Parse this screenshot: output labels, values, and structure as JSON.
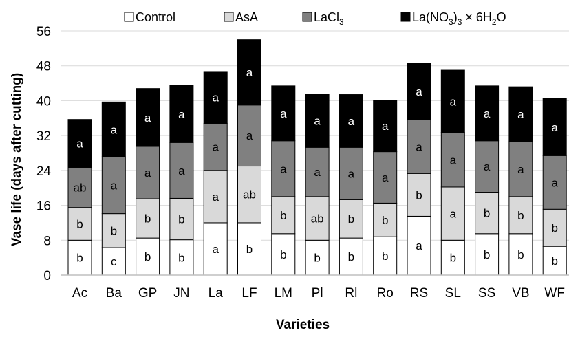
{
  "chart_data": {
    "type": "bar",
    "stacked": true,
    "xlabel": "Varieties",
    "ylabel": "Vase life (days after cutting)",
    "ylim": [
      0,
      56
    ],
    "yticks": [
      0,
      8,
      16,
      24,
      32,
      40,
      48,
      56
    ],
    "grid": "horizontal",
    "legend_position": "top",
    "categories": [
      "Ac",
      "Ba",
      "GP",
      "JN",
      "La",
      "LF",
      "LM",
      "Pl",
      "Rl",
      "Ro",
      "RS",
      "SL",
      "SS",
      "VB",
      "WF"
    ],
    "series": [
      {
        "name": "Control",
        "color": "#ffffff",
        "values": [
          8,
          6.3,
          8.5,
          8.1,
          12,
          12,
          9.5,
          8,
          8.5,
          8.8,
          13.5,
          8,
          9.5,
          9.5,
          6.6
        ],
        "letters": [
          "b",
          "c",
          "b",
          "b",
          "a",
          "b",
          "b",
          "b",
          "b",
          "b",
          "a",
          "b",
          "b",
          "b",
          "b"
        ]
      },
      {
        "name": "AsA",
        "color": "#d9d9d9",
        "values": [
          7.5,
          7.8,
          9,
          9.5,
          12,
          13,
          8.5,
          10,
          8.8,
          7.7,
          9.8,
          12.2,
          9.5,
          8.5,
          8.5
        ],
        "letters": [
          "b",
          "b",
          "b",
          "b",
          "a",
          "ab",
          "b",
          "ab",
          "b",
          "b",
          "b",
          "a",
          "b",
          "b",
          "b"
        ]
      },
      {
        "name": "LaCl3",
        "color": "#808080",
        "values": [
          9.2,
          13,
          12,
          12.8,
          10.8,
          14,
          12.8,
          11.3,
          12,
          11.8,
          12.3,
          12.5,
          11.8,
          12.6,
          12.3
        ],
        "letters": [
          "ab",
          "a",
          "a",
          "a",
          "a",
          "a",
          "a",
          "a",
          "a",
          "a",
          "a",
          "a",
          "a",
          "a",
          "a"
        ]
      },
      {
        "name": "La(NO3)3 × 6H2O",
        "color": "#000000",
        "values": [
          11,
          12.6,
          13.3,
          13.1,
          11.9,
          15,
          12.6,
          12.2,
          12.1,
          11.8,
          13,
          14.3,
          12.6,
          12.6,
          13.1
        ],
        "letters": [
          "a",
          "a",
          "a",
          "a",
          "a",
          "a",
          "a",
          "a",
          "a",
          "a",
          "a",
          "a",
          "a",
          "a",
          "a"
        ]
      }
    ]
  },
  "legend": {
    "control_label": "Control",
    "asa_label": "AsA",
    "lacl_main": "LaCl",
    "lacl_sub": "3",
    "la_prefix": "La(NO",
    "la_sub1": "3",
    "la_mid": ")",
    "la_sub2": "3",
    "la_mid2": " × 6H",
    "la_sub3": "2",
    "la_suffix": "O"
  }
}
